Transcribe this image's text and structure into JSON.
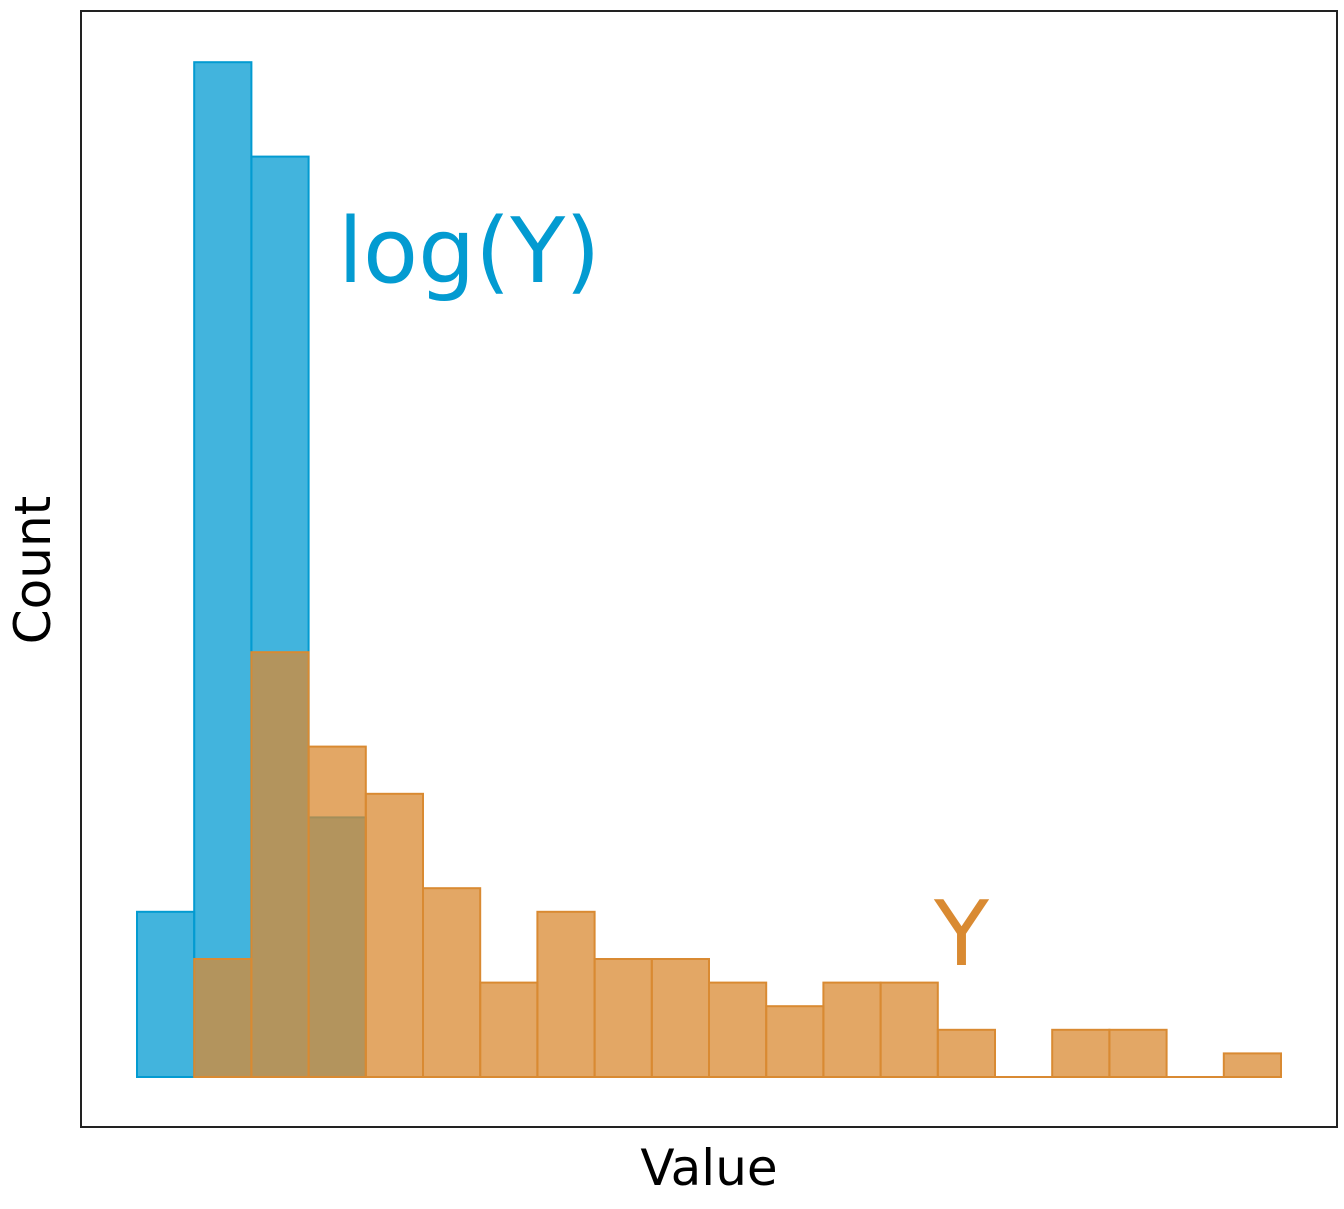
{
  "chart_data": {
    "type": "bar",
    "xlabel": "Value",
    "ylabel": "Count",
    "bin_count": 20,
    "ylim": [
      0,
      45
    ],
    "grid": false,
    "legend": "none",
    "series": [
      {
        "name": "log(Y)",
        "color": "#039BD1",
        "fill_opacity": 0.75,
        "values": [
          7,
          43,
          39,
          11,
          0,
          0,
          0,
          0,
          0,
          0,
          0,
          0,
          0,
          0,
          0,
          0,
          0,
          0,
          0,
          0
        ]
      },
      {
        "name": "Y",
        "color": "#D98A32",
        "fill_opacity": 0.75,
        "values": [
          0,
          5,
          18,
          14,
          12,
          8,
          4,
          7,
          5,
          5,
          4,
          3,
          4,
          4,
          2,
          0,
          2,
          2,
          0,
          1
        ]
      }
    ]
  }
}
